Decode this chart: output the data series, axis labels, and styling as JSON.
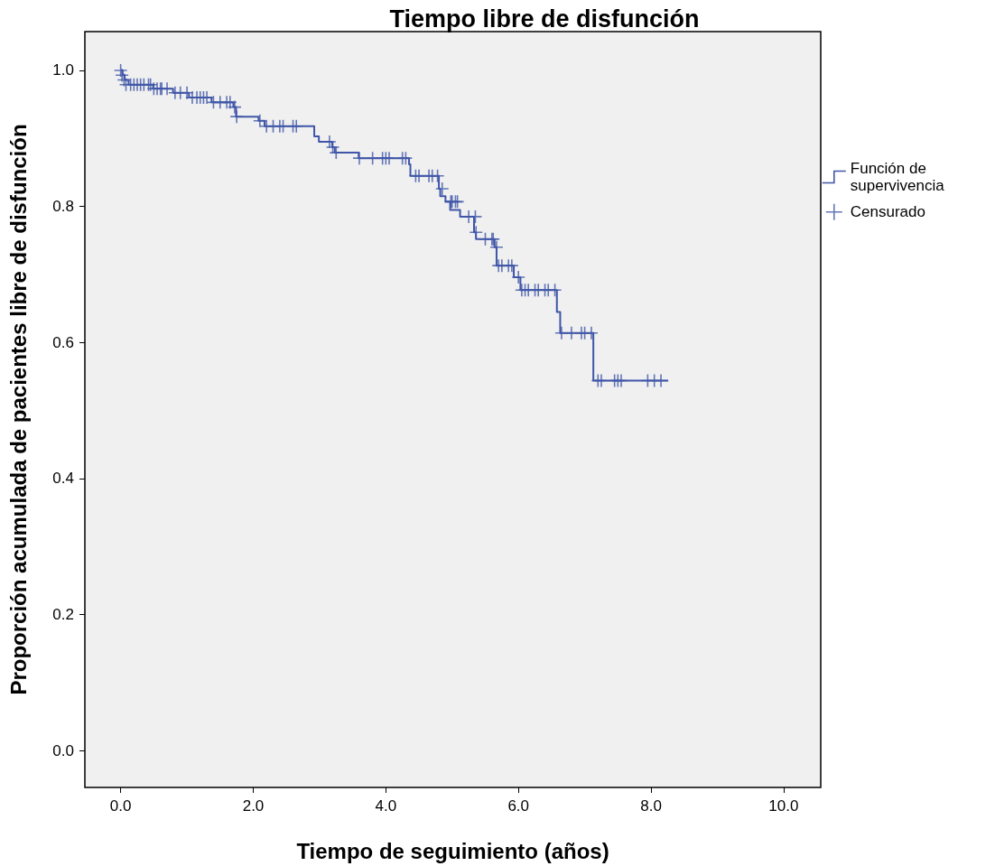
{
  "chart_data": {
    "type": "step",
    "title": "Tiempo libre de disfunción",
    "xlabel": "Tiempo de seguimiento (años)",
    "ylabel": "Proporción acumulada de pacientes libre de disfunción",
    "xlim": [
      -0.54,
      10.56
    ],
    "ylim": [
      -0.054,
      1.057
    ],
    "xticks": [
      {
        "value": 0,
        "label": "0.0"
      },
      {
        "value": 2,
        "label": "2.0"
      },
      {
        "value": 4,
        "label": "4.0"
      },
      {
        "value": 6,
        "label": "6.0"
      },
      {
        "value": 8,
        "label": "8.0"
      },
      {
        "value": 10,
        "label": "10.0"
      }
    ],
    "yticks": [
      {
        "value": 0,
        "label": "0.0"
      },
      {
        "value": 0.2,
        "label": "0.2"
      },
      {
        "value": 0.4,
        "label": "0.4"
      },
      {
        "value": 0.6,
        "label": "0.6"
      },
      {
        "value": 0.8,
        "label": "0.8"
      },
      {
        "value": 1,
        "label": "1.0"
      }
    ],
    "grid": false,
    "legend": "right",
    "series": [
      {
        "name": "Función de supervivencia",
        "color": "#3f56a8",
        "x": [
          0,
          0.03,
          0.06,
          0.12,
          0.49,
          0.79,
          1.03,
          1.37,
          1.7,
          1.74,
          2.08,
          2.17,
          2.92,
          2.99,
          3.19,
          3.23,
          3.59,
          4.35,
          4.37,
          4.8,
          4.82,
          4.9,
          4.97,
          5.12,
          5.33,
          5.36,
          5.64,
          5.67,
          5.93,
          6.03,
          6.58,
          6.63,
          7.13,
          8.26
        ],
        "values": [
          1.0,
          0.993,
          0.986,
          0.979,
          0.973,
          0.967,
          0.96,
          0.953,
          0.946,
          0.932,
          0.926,
          0.918,
          0.903,
          0.895,
          0.887,
          0.879,
          0.871,
          0.862,
          0.845,
          0.826,
          0.815,
          0.807,
          0.795,
          0.785,
          0.762,
          0.752,
          0.74,
          0.713,
          0.696,
          0.677,
          0.645,
          0.614,
          0.544,
          0.544
        ]
      },
      {
        "name": "Censurado",
        "type": "scatter",
        "marker": "cross",
        "color": "#3f56a8",
        "x": [
          0.0,
          0.02,
          0.05,
          0.08,
          0.15,
          0.2,
          0.25,
          0.3,
          0.35,
          0.42,
          0.45,
          0.5,
          0.55,
          0.6,
          0.62,
          0.7,
          0.82,
          0.9,
          1.0,
          1.08,
          1.15,
          1.2,
          1.25,
          1.3,
          1.4,
          1.5,
          1.6,
          1.65,
          1.72,
          1.75,
          2.1,
          2.2,
          2.3,
          2.4,
          2.45,
          2.6,
          2.65,
          3.15,
          3.2,
          3.25,
          3.6,
          3.8,
          3.95,
          4.0,
          4.05,
          4.25,
          4.3,
          4.45,
          4.5,
          4.65,
          4.7,
          4.78,
          4.85,
          4.98,
          5.0,
          5.05,
          5.08,
          5.25,
          5.35,
          5.36,
          5.5,
          5.6,
          5.62,
          5.67,
          5.7,
          5.75,
          5.85,
          5.9,
          6.0,
          6.05,
          6.1,
          6.15,
          6.25,
          6.3,
          6.4,
          6.45,
          6.55,
          6.65,
          6.8,
          6.95,
          7.0,
          7.1,
          7.2,
          7.25,
          7.45,
          7.5,
          7.55,
          7.95,
          8.05,
          8.15
        ],
        "values": [
          1.0,
          0.993,
          0.986,
          0.979,
          0.979,
          0.979,
          0.979,
          0.979,
          0.979,
          0.979,
          0.979,
          0.973,
          0.973,
          0.973,
          0.973,
          0.973,
          0.967,
          0.967,
          0.967,
          0.96,
          0.96,
          0.96,
          0.96,
          0.96,
          0.953,
          0.953,
          0.953,
          0.953,
          0.946,
          0.932,
          0.926,
          0.918,
          0.918,
          0.918,
          0.918,
          0.918,
          0.918,
          0.895,
          0.887,
          0.879,
          0.871,
          0.871,
          0.871,
          0.871,
          0.871,
          0.871,
          0.871,
          0.845,
          0.845,
          0.845,
          0.845,
          0.845,
          0.826,
          0.807,
          0.807,
          0.807,
          0.807,
          0.785,
          0.785,
          0.762,
          0.752,
          0.752,
          0.752,
          0.74,
          0.713,
          0.713,
          0.713,
          0.713,
          0.696,
          0.677,
          0.677,
          0.677,
          0.677,
          0.677,
          0.677,
          0.677,
          0.677,
          0.614,
          0.614,
          0.614,
          0.614,
          0.614,
          0.544,
          0.544,
          0.544,
          0.544,
          0.544,
          0.544,
          0.544,
          0.544
        ]
      }
    ]
  }
}
